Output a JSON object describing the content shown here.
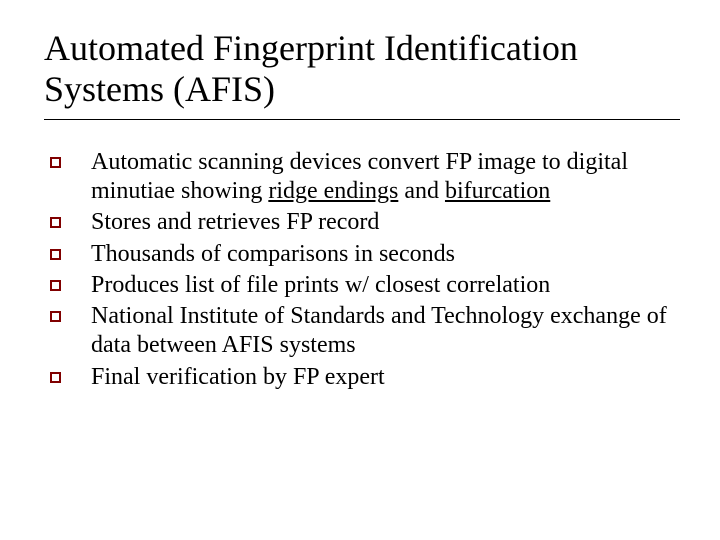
{
  "slide": {
    "title": "Automated Fingerprint Identification Systems (AFIS)",
    "title_fontsize": 36,
    "body_fontsize": 24,
    "text_color": "#000000",
    "background_color": "#ffffff",
    "bullet_border_color": "#800000",
    "rule_color": "#000000",
    "bullets": {
      "0": {
        "pre": "Automatic scanning devices convert FP image to digital minutiae showing ",
        "u1": "ridge endings",
        "mid": " and ",
        "u2": "bifurcation"
      },
      "1": {
        "text": "Stores and retrieves FP record"
      },
      "2": {
        "text": "Thousands of comparisons in seconds"
      },
      "3": {
        "text": "Produces list of file prints w/ closest correlation"
      },
      "4": {
        "text": "National Institute of Standards and Technology exchange of data between AFIS systems"
      },
      "5": {
        "text": "Final verification by FP expert"
      }
    }
  }
}
